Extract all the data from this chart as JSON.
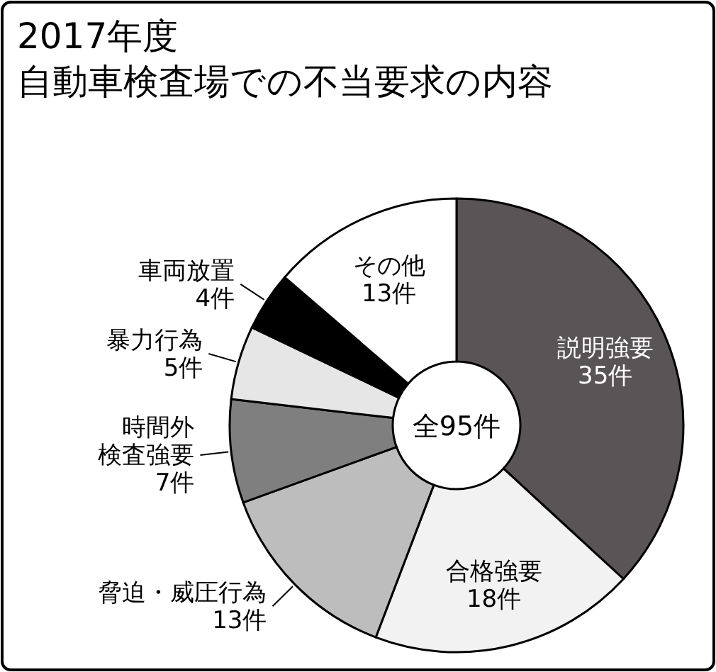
{
  "chart_data": {
    "type": "donut",
    "title": "2017年度",
    "subtitle": "自動車検査場での不当要求の内容",
    "categories": [
      "説明強要",
      "合格強要",
      "脅迫・威圧行為",
      "時間外検査強要",
      "暴力行為",
      "車両放置",
      "その他"
    ],
    "values": [
      35,
      18,
      13,
      7,
      5,
      4,
      13
    ],
    "value_labels": [
      "35件",
      "18件",
      "13件",
      "7件",
      "5件",
      "4件",
      "13件"
    ],
    "colors": [
      "#595455",
      "#f2f2f2",
      "#bdbdbd",
      "#7f7f7f",
      "#e6e6e6",
      "#000000",
      "#ffffff"
    ],
    "annotations": [
      "全95件"
    ]
  }
}
